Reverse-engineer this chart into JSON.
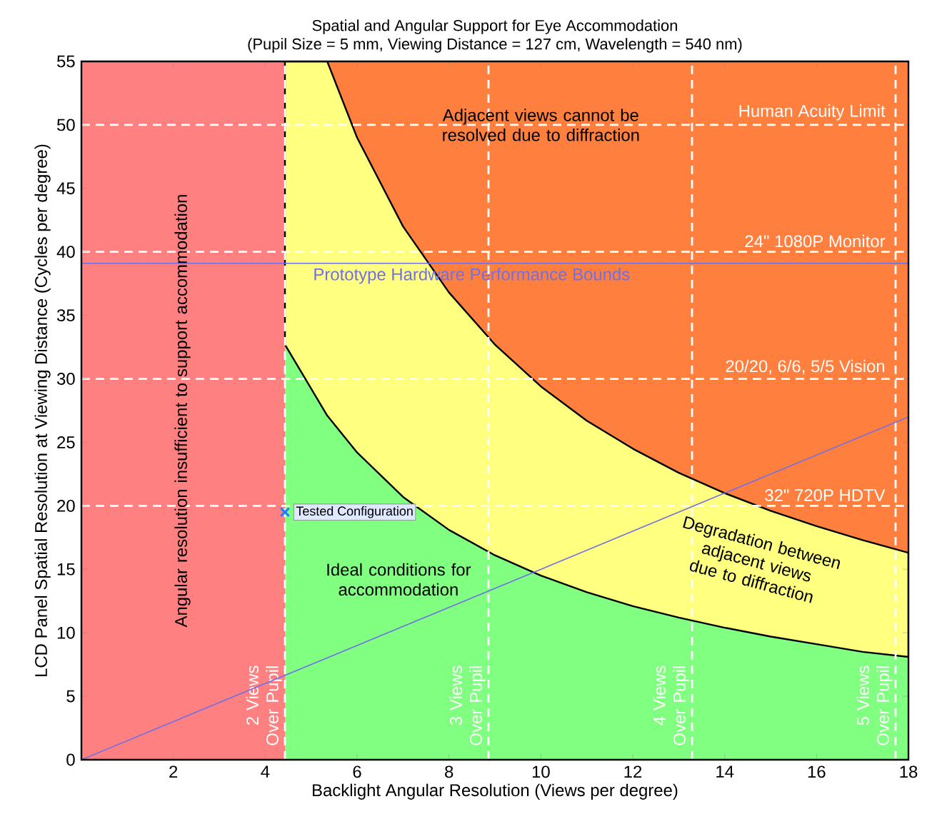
{
  "chart_data": {
    "type": "area",
    "title": "Spatial and Angular Support for Eye Accommodation",
    "subtitle": "(Pupil Size = 5 mm, Viewing Distance = 127 cm, Wavelength = 540 nm)",
    "xlabel": "Backlight Angular Resolution (Views per degree)",
    "ylabel": "LCD Panel Spatial Resolution at Viewing Distance (Cycles per degree)",
    "xlim": [
      0,
      18
    ],
    "ylim": [
      0,
      55
    ],
    "xticks": [
      2,
      4,
      6,
      8,
      10,
      12,
      14,
      16,
      18
    ],
    "yticks": [
      0,
      5,
      10,
      15,
      20,
      25,
      30,
      35,
      40,
      45,
      50,
      55
    ],
    "series": [
      {
        "color": "#80ff80",
        "x": [
          4.43,
          5.35,
          6,
          7,
          8,
          9,
          10,
          11,
          12,
          13,
          14,
          15,
          16,
          17,
          18
        ],
        "values": [
          32.7,
          27.1,
          24.2,
          20.7,
          18.1,
          16.1,
          14.5,
          13.2,
          12.1,
          11.2,
          10.4,
          9.7,
          9.1,
          8.5,
          8.1
        ]
      },
      {
        "color": "#ffff80",
        "x": [
          4.43,
          5.35,
          6,
          7,
          8,
          9,
          10,
          11,
          12,
          13,
          14,
          15,
          16,
          17,
          18
        ],
        "values": [
          55,
          55,
          49,
          42,
          36.8,
          32.7,
          29.4,
          26.7,
          24.5,
          22.6,
          21,
          19.6,
          18.4,
          17.3,
          16.3
        ]
      },
      {
        "type": "line",
        "color": "#6f6fe8",
        "x": [
          0,
          18
        ],
        "values": [
          0,
          27
        ]
      },
      {
        "type": "scatter",
        "name": "Tested Configuration",
        "color": "#1f7fff",
        "marker": "cross",
        "x": [
          4.43
        ],
        "values": [
          19.5
        ]
      }
    ],
    "bands": [
      {
        "axis": "x",
        "from": 0,
        "to": 4.43,
        "color": "#ff8080"
      },
      {
        "axis": "x",
        "from": 4.43,
        "to": 18,
        "color": "#ff7f3f"
      }
    ],
    "ref_lines": [
      {
        "axis": "y",
        "value": 50,
        "label": "Human Acuity Limit",
        "color": "#ffffff",
        "line_style": "dashed"
      },
      {
        "axis": "y",
        "value": 40,
        "label": "24\" 1080P Monitor",
        "color": "#ffffff",
        "line_style": "dashed"
      },
      {
        "axis": "y",
        "value": 30,
        "label": "20/20, 6/6, 5/5 Vision",
        "color": "#ffffff",
        "line_style": "dashed"
      },
      {
        "axis": "y",
        "value": 20,
        "label": "32\" 720P HDTV",
        "color": "#ffffff",
        "line_style": "dashed"
      },
      {
        "axis": "y",
        "value": 39.1,
        "label": "Prototype Hardware Performance Bounds",
        "color": "#6f6fe8",
        "line_style": "solid"
      },
      {
        "axis": "x",
        "value": 4.43,
        "label": "2 Views Over Pupil",
        "color": "#ffffff",
        "line_style": "dashed"
      },
      {
        "axis": "x",
        "value": 8.86,
        "label": "3 Views Over Pupil",
        "color": "#ffffff",
        "line_style": "dashed"
      },
      {
        "axis": "x",
        "value": 13.29,
        "label": "4 Views Over Pupil",
        "color": "#ffffff",
        "line_style": "dashed"
      },
      {
        "axis": "x",
        "value": 17.72,
        "label": "5 Views Over Pupil",
        "color": "#ffffff",
        "line_style": "dashed"
      }
    ],
    "annotations": [
      "Adjacent views cannot be resolved due to diffraction",
      "Degradation between adjacent views due to diffraction",
      "Ideal conditions for accommodation",
      "Angular resolution insufficient to support accommodation"
    ]
  }
}
